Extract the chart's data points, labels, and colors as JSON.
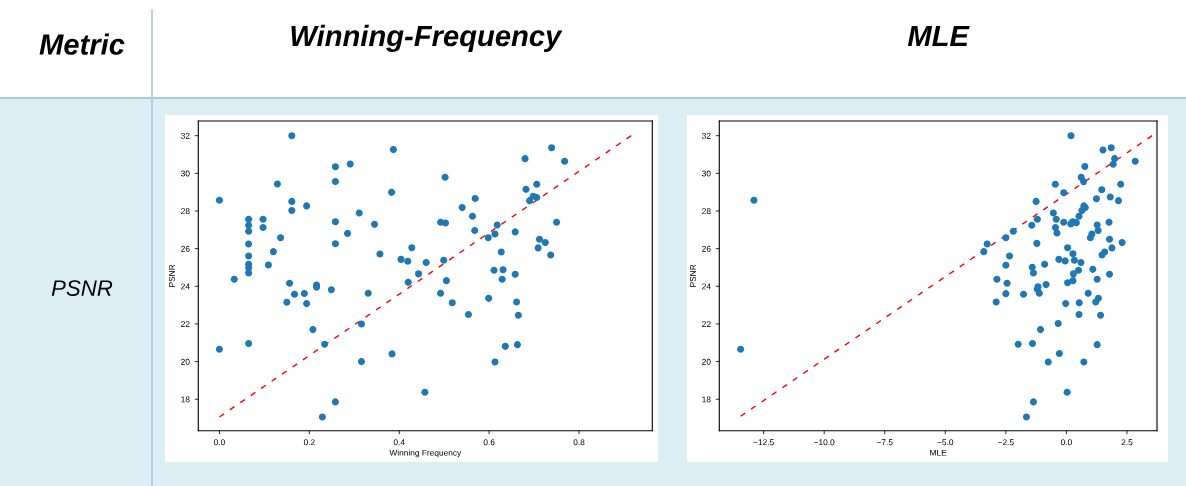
{
  "chart_data": [
    {
      "type": "scatter",
      "title": "Winning-Frequency",
      "xlabel": "Winning Frequency",
      "ylabel": "PSNR",
      "annotations": [
        "Metric",
        "PSNR"
      ],
      "marker": "circle",
      "grid": false,
      "legend": false,
      "xlim": [
        -0.047,
        0.963
      ],
      "ylim": [
        16.33,
        32.78
      ],
      "xticks": [
        {
          "value": 0,
          "label": "0.0"
        },
        {
          "value": 0.2,
          "label": "0.2"
        },
        {
          "value": 0.4,
          "label": "0.4"
        },
        {
          "value": 0.6,
          "label": "0.6"
        },
        {
          "value": 0.8,
          "label": "0.8"
        }
      ],
      "yticks": [
        18,
        20,
        22,
        24,
        26,
        28,
        30,
        32
      ],
      "series": [
        {
          "color": "#1f77b4",
          "x": [
            0,
            0,
            0.033,
            0.065,
            0.065,
            0.065,
            0.065,
            0.065,
            0.065,
            0.065,
            0.065,
            0.065,
            0.097,
            0.097,
            0.109,
            0.12,
            0.129,
            0.136,
            0.15,
            0.156,
            0.161,
            0.161,
            0.161,
            0.167,
            0.189,
            0.194,
            0.194,
            0.208,
            0.216,
            0.216,
            0.229,
            0.234,
            0.249,
            0.258,
            0.258,
            0.258,
            0.258,
            0.258,
            0.285,
            0.291,
            0.311,
            0.316,
            0.316,
            0.331,
            0.345,
            0.357,
            0.383,
            0.387,
            0.384,
            0.404,
            0.419,
            0.42,
            0.428,
            0.443,
            0.46,
            0.457,
            0.492,
            0.492,
            0.503,
            0.502,
            0.499,
            0.505,
            0.518,
            0.54,
            0.554,
            0.563,
            0.569,
            0.568,
            0.598,
            0.599,
            0.613,
            0.618,
            0.611,
            0.613,
            0.627,
            0.631,
            0.629,
            0.636,
            0.658,
            0.658,
            0.661,
            0.665,
            0.663,
            0.68,
            0.682,
            0.69,
            0.698,
            0.706,
            0.706,
            0.712,
            0.709,
            0.725,
            0.737,
            0.739,
            0.75,
            0.768
          ],
          "values": [
            28.57,
            20.66,
            24.37,
            27.56,
            27.24,
            26.92,
            26.25,
            25.61,
            25.17,
            24.97,
            24.71,
            20.96,
            27.56,
            27.12,
            25.13,
            25.84,
            29.43,
            26.58,
            23.15,
            24.16,
            32.0,
            28.51,
            28.03,
            23.58,
            23.62,
            28.27,
            23.08,
            21.7,
            24.07,
            23.95,
            17.06,
            20.92,
            23.82,
            30.35,
            29.57,
            27.43,
            26.26,
            17.86,
            26.81,
            30.49,
            27.89,
            22.0,
            20.0,
            23.63,
            27.29,
            25.72,
            28.99,
            31.26,
            20.41,
            25.43,
            25.33,
            24.21,
            26.05,
            24.66,
            25.26,
            18.37,
            23.63,
            27.4,
            27.36,
            29.79,
            25.38,
            24.3,
            23.13,
            28.18,
            22.5,
            27.72,
            28.66,
            26.96,
            26.58,
            23.36,
            26.78,
            27.26,
            24.85,
            19.98,
            25.82,
            24.88,
            24.37,
            20.81,
            26.89,
            24.64,
            23.17,
            22.46,
            20.9,
            30.78,
            29.15,
            28.55,
            28.78,
            28.72,
            29.42,
            26.5,
            26.04,
            26.32,
            25.66,
            31.36,
            27.4,
            30.64
          ]
        },
        {
          "type": "line",
          "color": "#ff0000",
          "line_style": "dashed",
          "marker": "none",
          "x": [
            0,
            0.916
          ],
          "values": [
            17.06,
            32.0
          ]
        }
      ]
    },
    {
      "type": "scatter",
      "title": "MLE",
      "xlabel": "MLE",
      "ylabel": "PSNR",
      "marker": "circle",
      "grid": false,
      "legend": false,
      "xlim": [
        -14.33,
        3.74
      ],
      "ylim": [
        16.33,
        32.78
      ],
      "xticks": [
        {
          "value": -12.5,
          "label": "−12.5"
        },
        {
          "value": -10,
          "label": "−10.0"
        },
        {
          "value": -7.5,
          "label": "−7.5"
        },
        {
          "value": -5,
          "label": "−5.0"
        },
        {
          "value": -2.5,
          "label": "−2.5"
        },
        {
          "value": 0,
          "label": "0.0"
        },
        {
          "value": 2.5,
          "label": "2.5"
        }
      ],
      "yticks": [
        18,
        20,
        22,
        24,
        26,
        28,
        30,
        32
      ],
      "series": [
        {
          "color": "#1f77b4",
          "x": [
            -12.9,
            -13.45,
            0.19,
            1.51,
            1.85,
            1.99,
            1.93,
            2.84,
            0.76,
            0.61,
            0.71,
            -0.46,
            2.24,
            1.46,
            -0.11,
            1.24,
            1.81,
            2.15,
            -1.25,
            0.72,
            0.78,
            0.64,
            0.52,
            -0.54,
            -1.2,
            -0.42,
            -0.11,
            0.18,
            0.26,
            0.41,
            -1.43,
            1.27,
            1.76,
            -0.45,
            -2.19,
            1.31,
            -0.39,
            1.05,
            0.99,
            -2.5,
            -3.27,
            -1.22,
            2.3,
            1.78,
            -3.41,
            1.88,
            0.05,
            -2.35,
            0.27,
            1.47,
            1.58,
            -0.31,
            -0.05,
            0.33,
            0.6,
            -2.5,
            -0.9,
            -1.41,
            -1.36,
            0.5,
            0.29,
            1.09,
            1.78,
            -2.87,
            -2.45,
            0.27,
            0.05,
            1.27,
            -0.84,
            -1.17,
            -1.2,
            -1.12,
            -2.5,
            -1.77,
            -2.9,
            -0.03,
            0.53,
            0.9,
            1.32,
            1.21,
            0.52,
            1.41,
            -0.34,
            -1.07,
            -1.99,
            -1.4,
            -0.29,
            -0.75,
            0.72,
            1.27,
            0.03,
            -1.36,
            -1.65
          ],
          "values": [
            28.57,
            20.66,
            32.0,
            31.24,
            31.36,
            30.78,
            30.48,
            30.64,
            30.36,
            29.79,
            29.56,
            29.42,
            29.42,
            29.13,
            28.97,
            28.65,
            28.74,
            28.55,
            28.51,
            28.27,
            28.18,
            28.02,
            27.72,
            27.89,
            27.56,
            27.56,
            27.4,
            27.31,
            27.43,
            27.38,
            27.24,
            27.26,
            27.4,
            27.12,
            26.92,
            26.96,
            26.83,
            26.78,
            26.58,
            26.58,
            26.25,
            26.28,
            26.32,
            26.5,
            25.84,
            26.04,
            26.05,
            25.61,
            25.73,
            25.66,
            25.82,
            25.43,
            25.35,
            25.38,
            25.26,
            25.12,
            25.17,
            25.01,
            24.71,
            24.85,
            24.66,
            24.9,
            24.64,
            24.37,
            24.16,
            24.3,
            24.19,
            24.37,
            24.09,
            23.97,
            23.84,
            23.63,
            23.61,
            23.58,
            23.17,
            23.08,
            23.12,
            23.63,
            23.36,
            23.17,
            22.5,
            22.46,
            22.02,
            21.7,
            20.92,
            20.96,
            20.43,
            19.98,
            19.98,
            20.9,
            18.37,
            17.86,
            17.06
          ]
        },
        {
          "type": "line",
          "color": "#ff0000",
          "line_style": "dashed",
          "marker": "none",
          "x": [
            -13.45,
            3.54
          ],
          "values": [
            17.1,
            32.0
          ]
        }
      ]
    }
  ]
}
